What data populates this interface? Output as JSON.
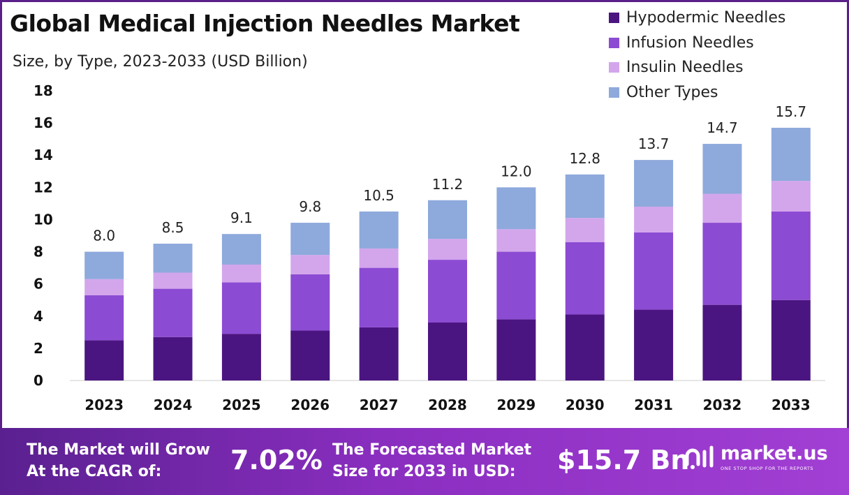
{
  "title": "Global Medical Injection Needles Market",
  "subtitle": "Size, by Type, 2023-2033 (USD Billion)",
  "colors": {
    "hypodermic": "#4b1581",
    "infusion": "#8c4bd3",
    "insulin": "#d3a6ec",
    "other": "#8ea9dc",
    "footer_start": "#5a2090",
    "footer_end": "#a23fd4"
  },
  "chart_data": {
    "type": "bar",
    "stacked": true,
    "categories": [
      "2023",
      "2024",
      "2025",
      "2026",
      "2027",
      "2028",
      "2029",
      "2030",
      "2031",
      "2032",
      "2033"
    ],
    "series": [
      {
        "name": "Hypodermic Needles",
        "values": [
          2.5,
          2.7,
          2.9,
          3.1,
          3.3,
          3.6,
          3.8,
          4.1,
          4.4,
          4.7,
          5.0
        ]
      },
      {
        "name": "Infusion Needles",
        "values": [
          2.8,
          3.0,
          3.2,
          3.5,
          3.7,
          3.9,
          4.2,
          4.5,
          4.8,
          5.1,
          5.5
        ]
      },
      {
        "name": "Insulin Needles",
        "values": [
          1.0,
          1.0,
          1.1,
          1.2,
          1.2,
          1.3,
          1.4,
          1.5,
          1.6,
          1.8,
          1.9
        ]
      },
      {
        "name": "Other Types",
        "values": [
          1.7,
          1.8,
          1.9,
          2.0,
          2.3,
          2.4,
          2.6,
          2.7,
          2.9,
          3.1,
          3.3
        ]
      }
    ],
    "totals": [
      "8.0",
      "8.5",
      "9.1",
      "9.8",
      "10.5",
      "11.2",
      "12.0",
      "12.8",
      "13.7",
      "14.7",
      "15.7"
    ],
    "ylim": [
      0,
      18
    ],
    "yticks": [
      0,
      2,
      4,
      6,
      8,
      10,
      12,
      14,
      16,
      18
    ],
    "grid": false,
    "legend_position": "top-right"
  },
  "footer": {
    "cagr_label_line1": "The Market will Grow",
    "cagr_label_line2": "At the CAGR of:",
    "cagr_value": "7.02%",
    "forecast_label_line1": "The Forecasted Market",
    "forecast_label_line2": "Size for 2033 in USD:",
    "forecast_value": "$15.7 Bn",
    "logo_name": "market.us",
    "logo_tagline": "ONE STOP SHOP FOR THE REPORTS"
  }
}
